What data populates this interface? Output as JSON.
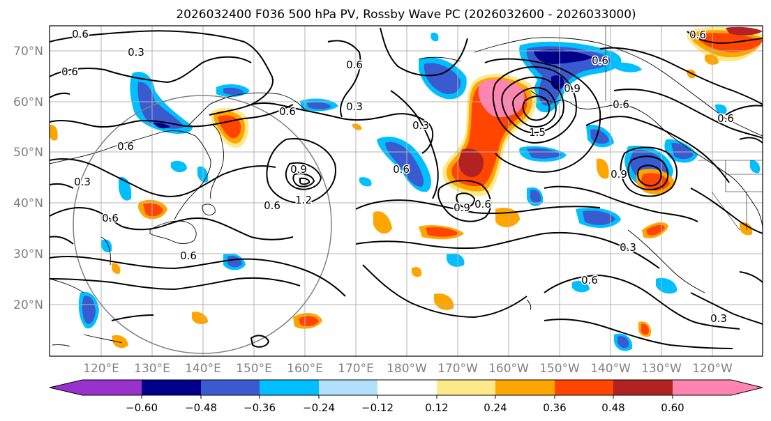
{
  "title": "2026032400 F036 500 hPa PV, Rossby Wave PC (2026032600 - 2026033000)",
  "lat_labels": [
    "70°N",
    "60°N",
    "50°N",
    "40°N",
    "30°N",
    "20°N"
  ],
  "lon_labels": [
    "120°E",
    "130°E",
    "140°E",
    "150°E",
    "160°E",
    "170°E",
    "180°W",
    "170°W",
    "160°W",
    "150°W",
    "140°W",
    "130°W",
    "120°W"
  ],
  "contour_labels": [
    {
      "text": "0.6"
    },
    {
      "text": "0.3"
    },
    {
      "text": "0.6"
    },
    {
      "text": "0.6"
    },
    {
      "text": "0.3"
    },
    {
      "text": "0.6"
    },
    {
      "text": "0.9"
    },
    {
      "text": "1.2"
    },
    {
      "text": "0.6"
    },
    {
      "text": "0.3"
    },
    {
      "text": "0.6"
    },
    {
      "text": "0.9"
    },
    {
      "text": "0.6"
    },
    {
      "text": "0.6"
    },
    {
      "text": "0.9"
    },
    {
      "text": "1.5"
    },
    {
      "text": "0.6"
    },
    {
      "text": "0.6"
    },
    {
      "text": "0.9"
    },
    {
      "text": "0.3"
    },
    {
      "text": "0.6"
    },
    {
      "text": "0.3"
    },
    {
      "text": "0.6"
    },
    {
      "text": "0.6"
    },
    {
      "text": "0.6"
    },
    {
      "text": "0.3"
    },
    {
      "text": "0.6"
    }
  ],
  "colorbar": {
    "ticks": [
      "−0.60",
      "−0.48",
      "−0.36",
      "−0.24",
      "−0.12",
      "0.12",
      "0.24",
      "0.36",
      "0.48",
      "0.60"
    ],
    "colors": [
      "#9932cc",
      "#00008b",
      "#3a5bd0",
      "#00bfff",
      "#b0e0fa",
      "#ffffff",
      "#fce98a",
      "#ffa500",
      "#ff4500",
      "#b22222",
      "#ff85b0"
    ]
  }
}
